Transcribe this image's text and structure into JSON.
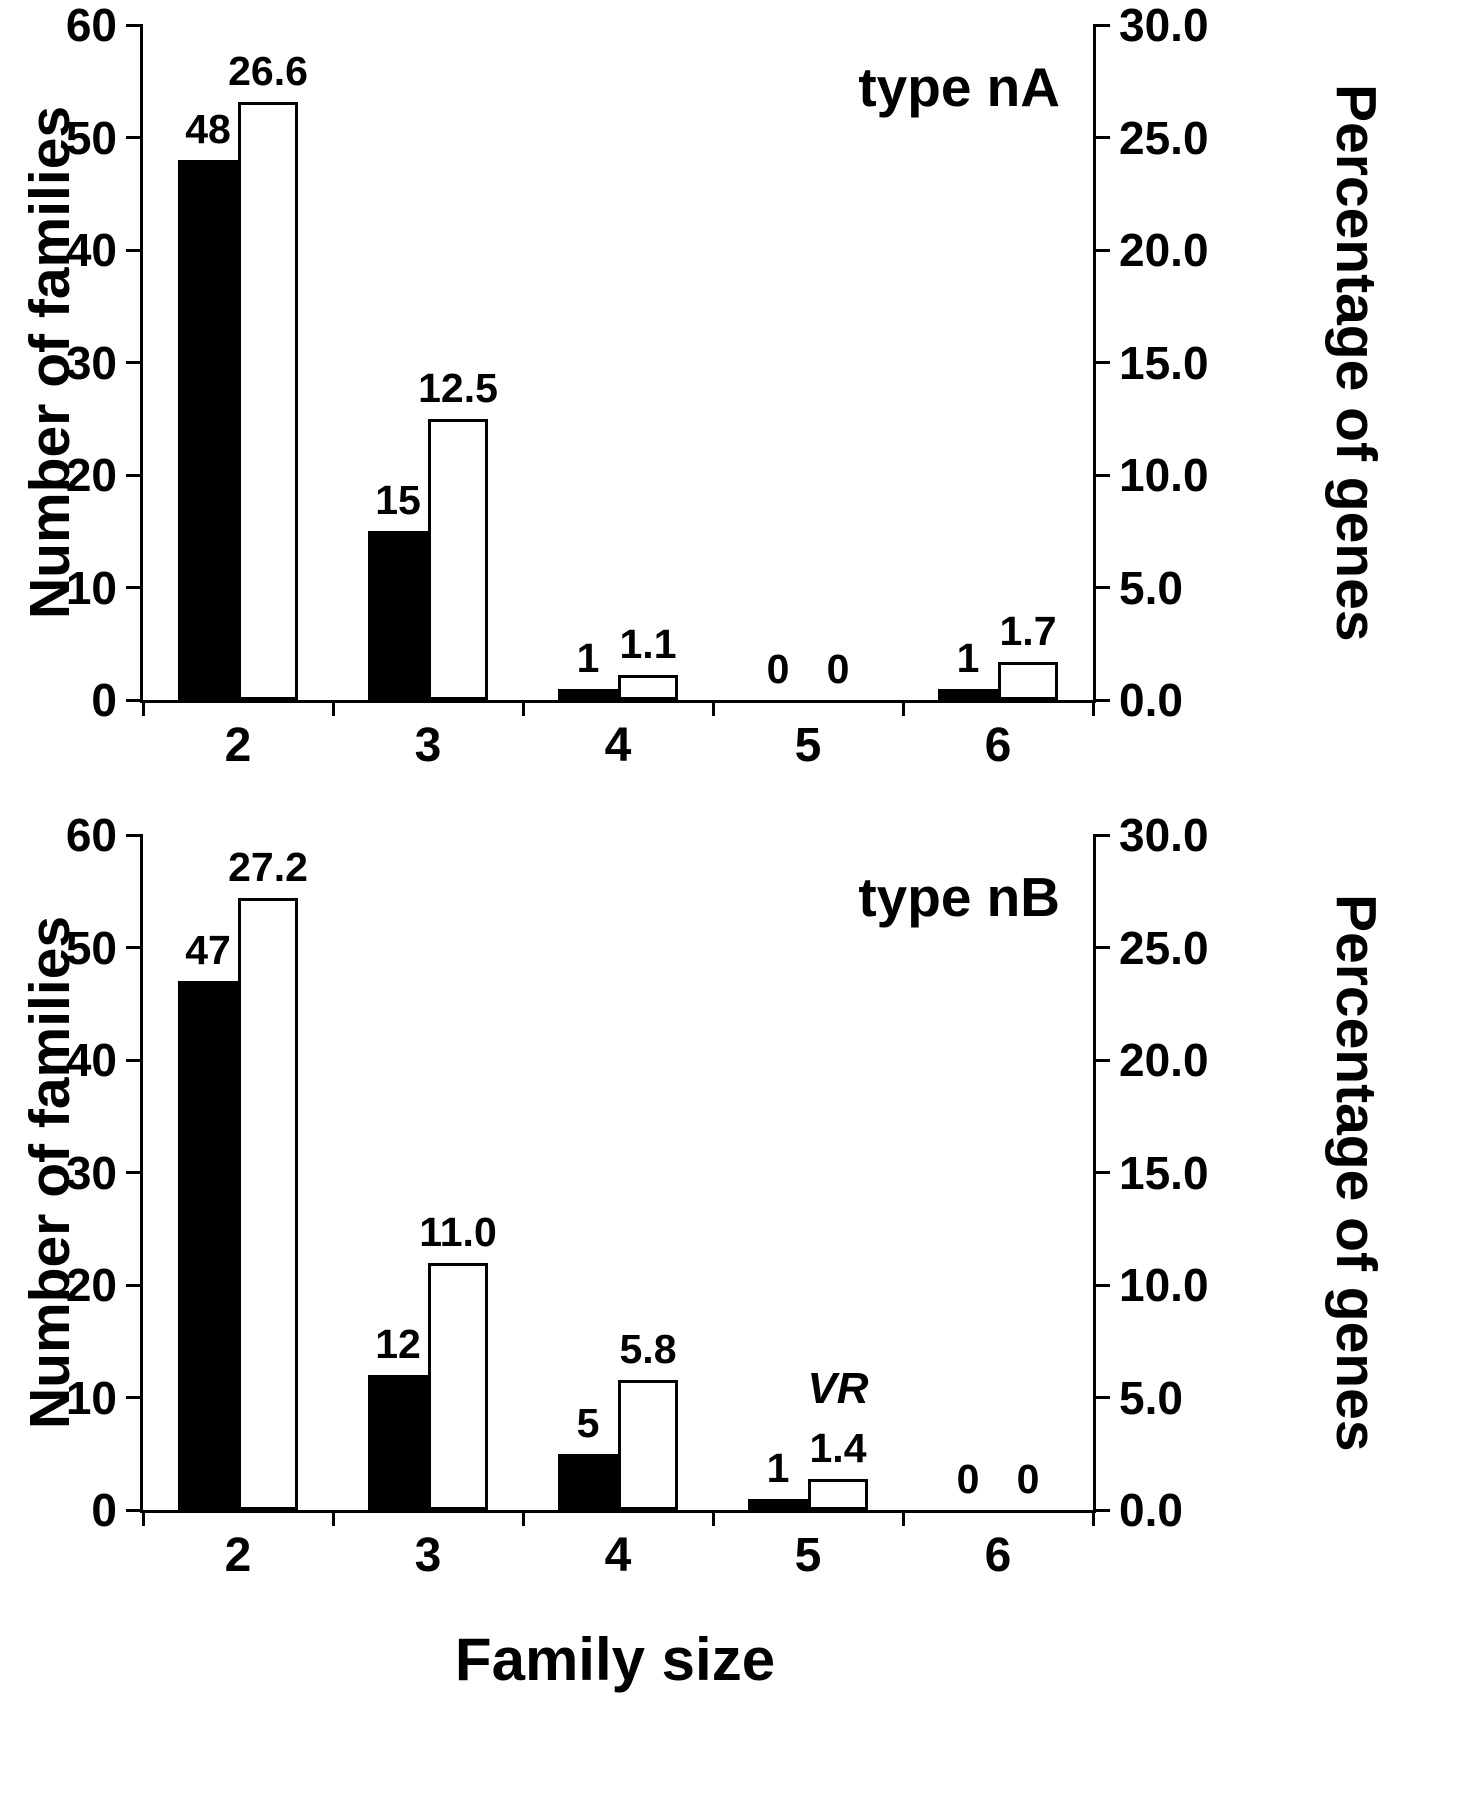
{
  "figure": {
    "xlabel": "Family size"
  },
  "chart_data": [
    {
      "type": "bar",
      "title": "type nA",
      "xlabel": "Family size",
      "ylabel_left": "Number of families",
      "ylabel_right": "Percentage of genes",
      "categories": [
        "2",
        "3",
        "4",
        "5",
        "6"
      ],
      "series": [
        {
          "name": "Number of families",
          "axis": "left",
          "color": "#000000",
          "values": [
            48,
            15,
            1,
            0,
            1
          ],
          "labels": [
            "48",
            "15",
            "1",
            "0",
            "1"
          ]
        },
        {
          "name": "Percentage of genes",
          "axis": "right",
          "color": "#ffffff",
          "values": [
            26.6,
            12.5,
            1.1,
            0,
            1.7
          ],
          "labels": [
            "26.6",
            "12.5",
            "1.1",
            "0",
            "1.7"
          ]
        }
      ],
      "ylim_left": [
        0,
        60
      ],
      "ylim_right": [
        0,
        30
      ],
      "yticks_left": [
        "0",
        "10",
        "20",
        "30",
        "40",
        "50",
        "60"
      ],
      "yticks_right": [
        "0.0",
        "5.0",
        "10.0",
        "15.0",
        "20.0",
        "25.0",
        "30.0"
      ],
      "grid": false,
      "legend": "none",
      "annotations": []
    },
    {
      "type": "bar",
      "title": "type nB",
      "xlabel": "Family size",
      "ylabel_left": "Number of families",
      "ylabel_right": "Percentage of genes",
      "categories": [
        "2",
        "3",
        "4",
        "5",
        "6"
      ],
      "series": [
        {
          "name": "Number of families",
          "axis": "left",
          "color": "#000000",
          "values": [
            47,
            12,
            5,
            1,
            0
          ],
          "labels": [
            "47",
            "12",
            "5",
            "1",
            "0"
          ]
        },
        {
          "name": "Percentage of genes",
          "axis": "right",
          "color": "#ffffff",
          "values": [
            27.2,
            11.0,
            5.8,
            1.4,
            0
          ],
          "labels": [
            "27.2",
            "11.0",
            "5.8",
            "1.4",
            "0"
          ]
        }
      ],
      "ylim_left": [
        0,
        60
      ],
      "ylim_right": [
        0,
        30
      ],
      "yticks_left": [
        "0",
        "10",
        "20",
        "30",
        "40",
        "50",
        "60"
      ],
      "yticks_right": [
        "0.0",
        "5.0",
        "10.0",
        "15.0",
        "20.0",
        "25.0",
        "30.0"
      ],
      "grid": false,
      "legend": "none",
      "annotations": [
        {
          "text": "VR",
          "category_index": 3,
          "series_index": 1,
          "style": "italic"
        }
      ]
    }
  ]
}
